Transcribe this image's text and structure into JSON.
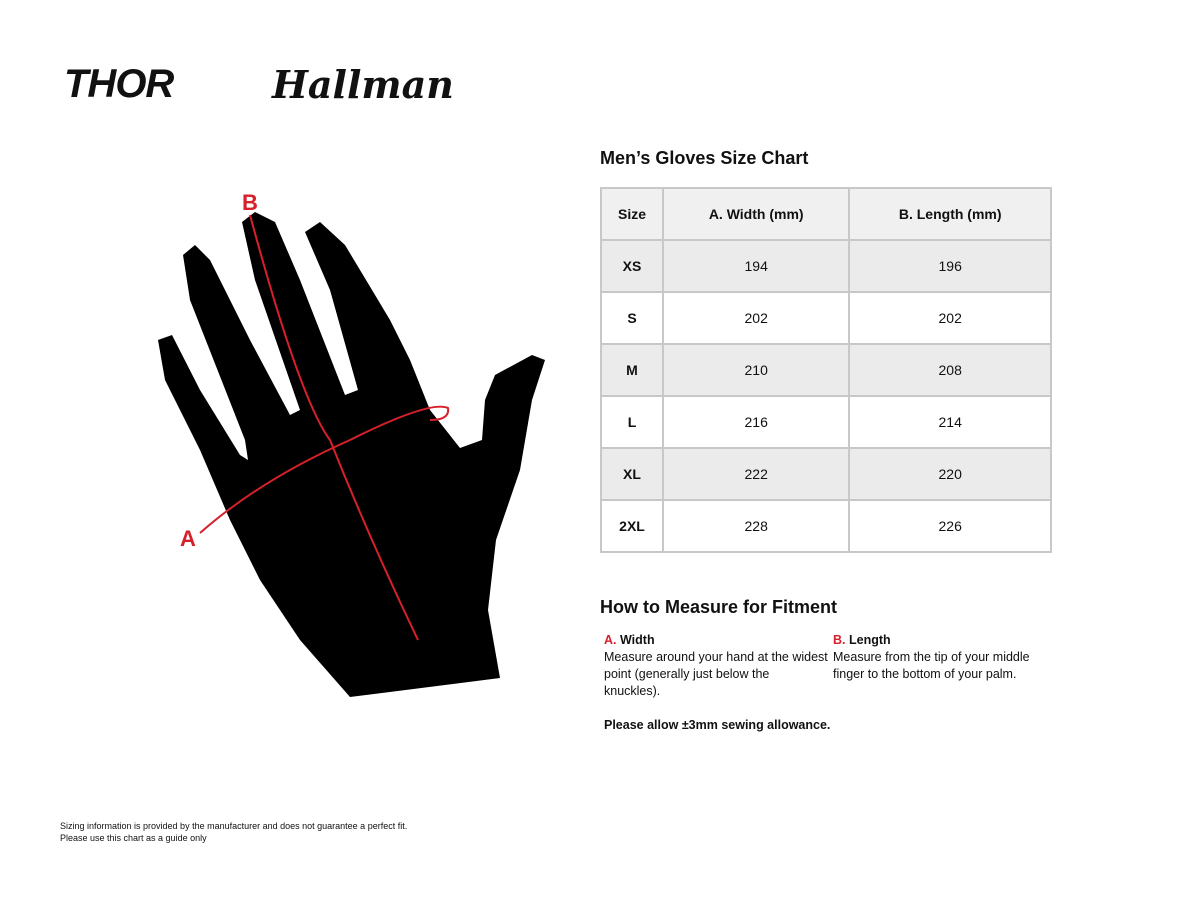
{
  "logos": {
    "thor": "THOR",
    "hallman": "Hallman"
  },
  "diagram": {
    "label_a": "A",
    "label_b": "B",
    "accent_color": "#d6202a"
  },
  "chart": {
    "title": "Men’s Gloves Size Chart",
    "headers": [
      "Size",
      "A. Width (mm)",
      "B. Length (mm)"
    ],
    "rows": [
      [
        "XS",
        "194",
        "196"
      ],
      [
        "S",
        "202",
        "202"
      ],
      [
        "M",
        "210",
        "208"
      ],
      [
        "L",
        "216",
        "214"
      ],
      [
        "XL",
        "222",
        "220"
      ],
      [
        "2XL",
        "228",
        "226"
      ]
    ]
  },
  "measure": {
    "title": "How to Measure for Fitment",
    "width": {
      "letter": "A.",
      "label": "Width",
      "text": "Measure around your hand at the widest point (generally just below the knuckles)."
    },
    "length": {
      "letter": "B.",
      "label": "Length",
      "text": "Measure from the tip of your middle finger to the bottom of your palm."
    },
    "note": "Please allow ±3mm sewing allowance."
  },
  "footer": {
    "line1": "Sizing information is provided by the manufacturer and does not guarantee a perfect fit.",
    "line2": "Please use this chart as a guide only"
  }
}
